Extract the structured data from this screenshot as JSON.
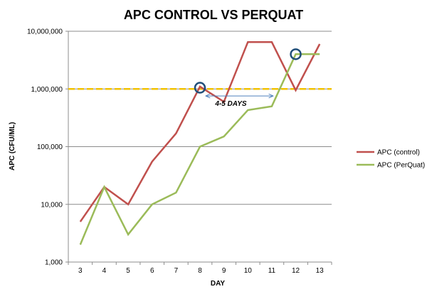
{
  "chart_data": {
    "type": "line",
    "title": "APC CONTROL VS PERQUAT",
    "xlabel": "DAY",
    "ylabel": "APC (CFU/ML)",
    "x": [
      3,
      4,
      5,
      6,
      7,
      8,
      9,
      10,
      11,
      12,
      13
    ],
    "x_tick_labels": [
      "3",
      "4",
      "5",
      "6",
      "7",
      "8",
      "9",
      "10",
      "11",
      "12",
      "13"
    ],
    "y_scale": "log",
    "ylim": [
      1000,
      10000000
    ],
    "y_ticks": [
      1000,
      10000,
      100000,
      1000000,
      10000000
    ],
    "y_tick_labels": [
      "1,000",
      "10,000",
      "100,000",
      "1,000,000",
      "10,000,000"
    ],
    "grid": "horizontal",
    "legend_position": "right",
    "series": [
      {
        "name": "APC (control)",
        "color": "#c0504d",
        "values": [
          5000,
          20000,
          10000,
          55000,
          170000,
          1100000,
          600000,
          6500000,
          6500000,
          950000,
          6000000
        ]
      },
      {
        "name": "APC (PerQuat)",
        "color": "#9bbb59",
        "values": [
          2000,
          20000,
          3000,
          10000,
          16000,
          100000,
          150000,
          430000,
          500000,
          4000000,
          4000000
        ]
      }
    ],
    "reference_line": {
      "y": 1000000,
      "color": "#f2c200",
      "style": "dashed"
    },
    "annotations": [
      {
        "text": "4-5 DAYS",
        "x_from": 8,
        "x_to": 11,
        "y": 800000
      }
    ],
    "circled_points": [
      {
        "x": 8,
        "y": 1050000
      },
      {
        "x": 12,
        "y": 4000000
      }
    ],
    "circle_color": "#1f4e79"
  }
}
